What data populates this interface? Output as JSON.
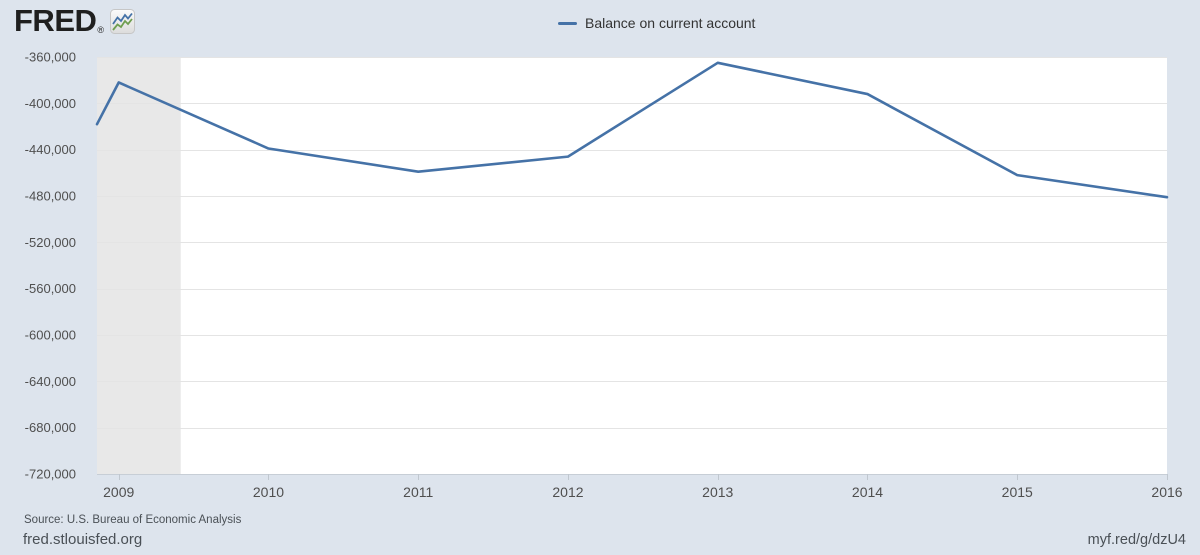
{
  "header": {
    "logo_text": "FRED",
    "logo_reg": "®"
  },
  "legend": {
    "label": "Balance on current account"
  },
  "footer": {
    "source": "Source: U.S. Bureau of Economic Analysis",
    "site_url": "fred.stlouisfed.org",
    "short_url": "myf.red/g/dzU4"
  },
  "colors": {
    "page_background": "#dde4ed",
    "plot_background": "#ffffff",
    "recession_band": "#e8e8e8",
    "gridline": "#e4e4e4",
    "axis_line": "#c7ced6",
    "tick": "#c0c7cf",
    "series_line": "#4572a7",
    "axis_label": "#4f4f4f",
    "legend_text": "#333333",
    "footer_text": "#4a5056",
    "logo_text": "#1f1f1f",
    "logo_icon_blue": "#4572a7",
    "logo_icon_green": "#6f9e50"
  },
  "chart_data": {
    "type": "line",
    "title": "Balance on current account",
    "xlabel": "",
    "ylabel": "",
    "grid": true,
    "legend_position": "top-center",
    "xlim": [
      2008.855,
      2016
    ],
    "ylim": [
      -720000,
      -360000
    ],
    "x_ticks": [
      {
        "value": 2009,
        "label": "2009"
      },
      {
        "value": 2010,
        "label": "2010"
      },
      {
        "value": 2011,
        "label": "2011"
      },
      {
        "value": 2012,
        "label": "2012"
      },
      {
        "value": 2013,
        "label": "2013"
      },
      {
        "value": 2014,
        "label": "2014"
      },
      {
        "value": 2015,
        "label": "2015"
      },
      {
        "value": 2016,
        "label": "2016"
      }
    ],
    "y_ticks": [
      {
        "value": -360000,
        "label": "-360,000"
      },
      {
        "value": -400000,
        "label": "-400,000"
      },
      {
        "value": -440000,
        "label": "-440,000"
      },
      {
        "value": -480000,
        "label": "-480,000"
      },
      {
        "value": -520000,
        "label": "-520,000"
      },
      {
        "value": -560000,
        "label": "-560,000"
      },
      {
        "value": -600000,
        "label": "-600,000"
      },
      {
        "value": -640000,
        "label": "-640,000"
      },
      {
        "value": -680000,
        "label": "-680,000"
      },
      {
        "value": -720000,
        "label": "-720,000"
      }
    ],
    "recession_bands": [
      [
        2008.855,
        2009.414
      ]
    ],
    "series": [
      {
        "name": "Balance on current account",
        "color": "#4572a7",
        "x": [
          2008.855,
          2009,
          2010,
          2011,
          2012,
          2013,
          2014,
          2015,
          2016
        ],
        "values": [
          -418000,
          -382000,
          -439000,
          -459000,
          -446000,
          -365000,
          -392000,
          -462000,
          -481000
        ]
      }
    ]
  }
}
